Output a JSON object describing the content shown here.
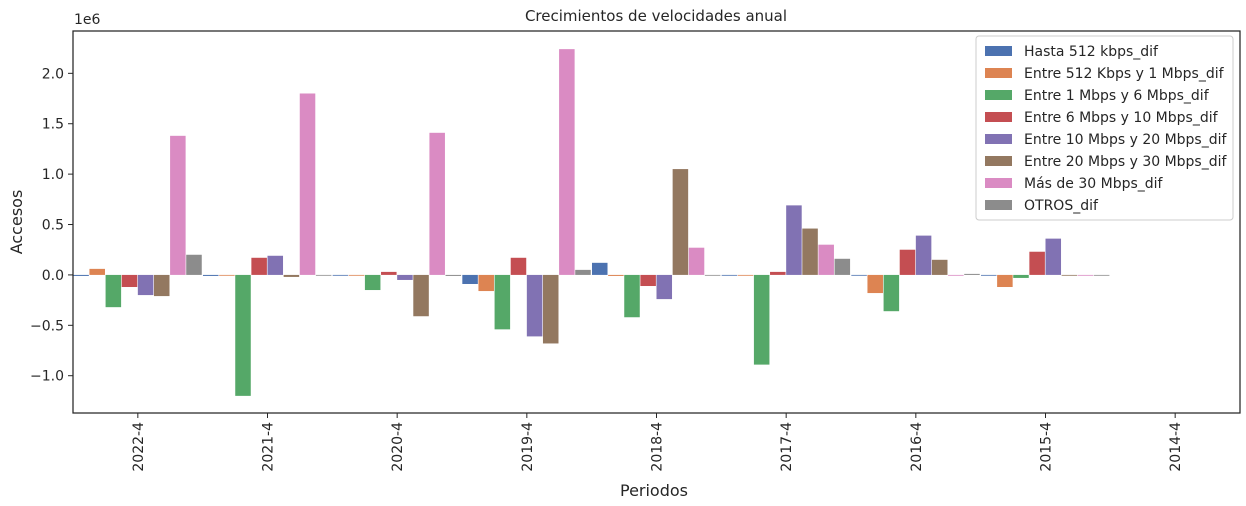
{
  "chart_data": {
    "type": "bar",
    "title": "Crecimientos de velocidades anual",
    "xlabel": "Periodos",
    "ylabel": "Accesos",
    "y_offset_label": "1e6",
    "ylim": [
      -1.37,
      2.42
    ],
    "yticks": [
      -1.0,
      -0.5,
      0.0,
      0.5,
      1.0,
      1.5,
      2.0
    ],
    "ytick_labels": [
      "−1.0",
      "−0.5",
      "0.0",
      "0.5",
      "1.0",
      "1.5",
      "2.0"
    ],
    "grid": false,
    "legend_position": "top-right",
    "categories": [
      "2022-4",
      "2021-4",
      "2020-4",
      "2019-4",
      "2018-4",
      "2017-4",
      "2016-4",
      "2015-4",
      "2014-4"
    ],
    "series": [
      {
        "name": "Hasta 512 kbps_dif",
        "color": "#4c72b0",
        "values": [
          -0.01,
          -0.01,
          0.0,
          -0.09,
          0.12,
          0.0,
          0.0,
          0.0,
          null
        ]
      },
      {
        "name": "Entre 512 Kbps y 1 Mbps_dif",
        "color": "#dd8452",
        "values": [
          0.06,
          0.0,
          0.0,
          -0.16,
          -0.01,
          0.0,
          -0.18,
          -0.12,
          null
        ]
      },
      {
        "name": "Entre 1 Mbps y 6 Mbps_dif",
        "color": "#55a868",
        "values": [
          -0.32,
          -1.2,
          -0.15,
          -0.54,
          -0.42,
          -0.89,
          -0.36,
          -0.03,
          null
        ]
      },
      {
        "name": "Entre 6 Mbps y 10 Mbps_dif",
        "color": "#c44e52",
        "values": [
          -0.12,
          0.17,
          0.03,
          0.17,
          -0.11,
          0.03,
          0.25,
          0.23,
          null
        ]
      },
      {
        "name": "Entre 10 Mbps y 20 Mbps_dif",
        "color": "#8172b3",
        "values": [
          -0.2,
          0.19,
          -0.05,
          -0.61,
          -0.24,
          0.69,
          0.39,
          0.36,
          null
        ]
      },
      {
        "name": "Entre 20 Mbps y 30 Mbps_dif",
        "color": "#937860",
        "values": [
          -0.21,
          -0.02,
          -0.41,
          -0.68,
          1.05,
          0.46,
          0.15,
          0.0,
          null
        ]
      },
      {
        "name": "Más de 30 Mbps_dif",
        "color": "#da8bc3",
        "values": [
          1.38,
          1.8,
          1.41,
          2.24,
          0.27,
          0.3,
          0.0,
          0.0,
          null
        ]
      },
      {
        "name": "OTROS_dif",
        "color": "#8c8c8c",
        "values": [
          0.2,
          0.0,
          -0.01,
          0.05,
          0.0,
          0.16,
          0.01,
          0.0,
          null
        ]
      }
    ]
  }
}
